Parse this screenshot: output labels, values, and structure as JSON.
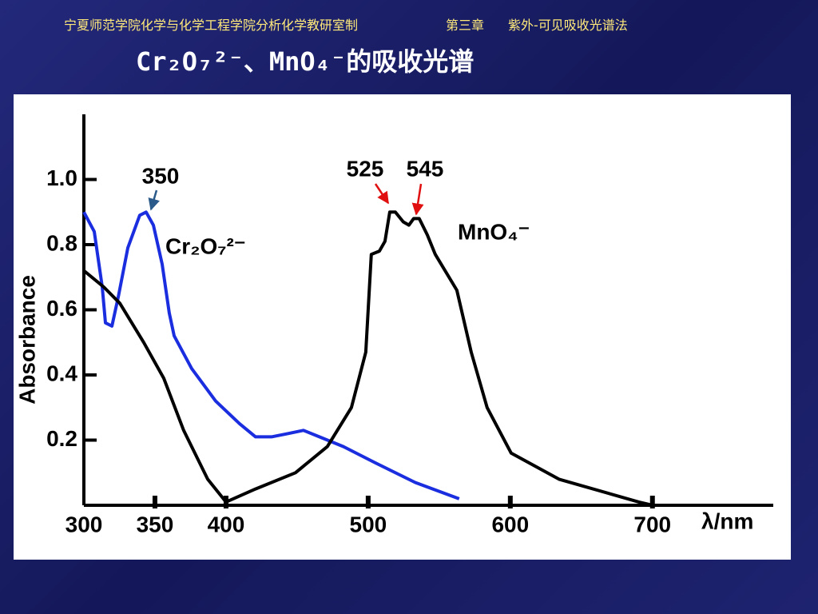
{
  "header": {
    "institution": "宁夏师范学院化学与化学工程学院分析化学教研室制",
    "chapter": "第三章",
    "topic": "紫外-可见吸收光谱法"
  },
  "chart_data": {
    "type": "line",
    "title": "Cr₂O₇²⁻、MnO₄⁻的吸收光谱",
    "x_label": "λ/nm",
    "y_label": "Absorbance",
    "xlim": [
      300,
      785
    ],
    "xticks": [
      300,
      350,
      400,
      500,
      600,
      700
    ],
    "ylim": [
      0,
      1.2
    ],
    "yticks": [
      0.2,
      0.4,
      0.6,
      0.8,
      {
        "value": 1,
        "label": "1.0"
      }
    ],
    "annotations": [
      "350",
      "525",
      "545"
    ],
    "series": [
      {
        "name": "Cr₂O₇²⁻",
        "color": "#1a2ee0",
        "x": [
          300,
          307.3,
          312.9,
          315.2,
          319.7,
          324.2,
          330.9,
          339.3,
          343.8,
          348.9,
          355.1,
          360.1,
          363.5,
          375.8,
          392.7,
          409.6,
          420.8,
          432.0,
          443.3,
          454.5,
          465.7,
          482.6,
          505.1,
          533.1,
          564.0
        ],
        "values": [
          0.9,
          0.84,
          0.67,
          0.56,
          0.55,
          0.64,
          0.79,
          0.89,
          0.9,
          0.86,
          0.74,
          0.59,
          0.52,
          0.42,
          0.32,
          0.25,
          0.21,
          0.21,
          0.22,
          0.23,
          0.21,
          0.18,
          0.13,
          0.07,
          0.02
        ]
      },
      {
        "name": "MnO₄⁻",
        "color": "#000000",
        "x": [
          300,
          314.0,
          325.3,
          342.1,
          356.2,
          370.2,
          387.1,
          400,
          420.8,
          448.9,
          471.3,
          488.2,
          498.3,
          502.2,
          507.9,
          511.8,
          515.2,
          519.1,
          524.7,
          528.7,
          532.0,
          535.9,
          541.6,
          547.2,
          562.4,
          572.5,
          583.7,
          600.6,
          634.3,
          690.4,
          700
        ],
        "values": [
          0.72,
          0.67,
          0.62,
          0.5,
          0.39,
          0.23,
          0.08,
          0.01,
          0.05,
          0.1,
          0.18,
          0.3,
          0.47,
          0.77,
          0.78,
          0.81,
          0.9,
          0.9,
          0.87,
          0.86,
          0.88,
          0.88,
          0.83,
          0.77,
          0.66,
          0.47,
          0.3,
          0.16,
          0.08,
          0.01,
          0.0
        ]
      }
    ]
  }
}
